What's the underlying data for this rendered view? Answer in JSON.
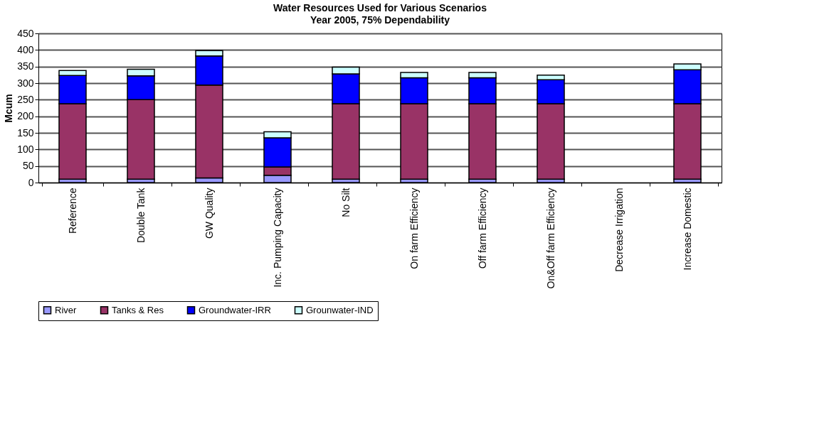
{
  "chart_data": {
    "type": "bar",
    "title": "Water Resources Used for Various Scenarios",
    "subtitle": "Year 2005, 75% Dependability",
    "ylabel": "Mcum",
    "categories": [
      "Reference",
      "Double Tank",
      "GW Quality",
      "Inc. Pumping Capacity",
      "No Silt",
      "On farm Efficiency",
      "Off farm Efficiency",
      "On&Off farm Efficiency",
      "Decrease Irrigation",
      "Increase Domestic"
    ],
    "stacked": true,
    "series": [
      {
        "name": "River",
        "color": "#9999ff",
        "values": [
          10,
          10,
          14,
          22,
          10,
          10,
          10,
          10,
          null,
          10
        ]
      },
      {
        "name": "Tanks & Res",
        "color": "#993366",
        "values": [
          228,
          240,
          280,
          25,
          228,
          228,
          228,
          228,
          null,
          228
        ]
      },
      {
        "name": "Groundwater-IRR",
        "color": "#0000ff",
        "values": [
          85,
          72,
          88,
          88,
          90,
          78,
          78,
          72,
          null,
          102
        ]
      },
      {
        "name": "Grounwater-IND",
        "color": "#ccffff",
        "values": [
          15,
          20,
          16,
          18,
          20,
          16,
          16,
          14,
          null,
          18
        ]
      }
    ],
    "ylim": [
      0,
      450
    ],
    "yticks": [
      0,
      50,
      100,
      150,
      200,
      250,
      300,
      350,
      400,
      450
    ],
    "grid": "y",
    "legend": "bottom"
  }
}
